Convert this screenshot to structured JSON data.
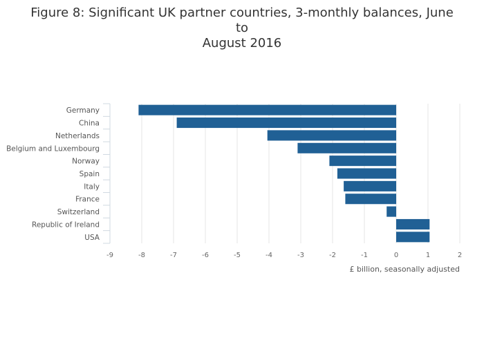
{
  "chart_data": {
    "type": "bar",
    "orientation": "horizontal",
    "title": "Figure 8: Significant UK partner countries, 3-monthly balances, June to August 2016",
    "title_lines": [
      "Figure 8: Significant UK partner countries, 3-monthly balances, June to",
      "August 2016"
    ],
    "xlabel": "£ billion, seasonally adjusted",
    "ylabel": "",
    "xlim": [
      -9,
      2
    ],
    "xticks": [
      -9,
      -8,
      -7,
      -6,
      -5,
      -4,
      -3,
      -2,
      -1,
      0,
      1,
      2
    ],
    "categories": [
      "Germany",
      "China",
      "Netherlands",
      "Belgium and Luxembourg",
      "Norway",
      "Spain",
      "Italy",
      "France",
      "Switzerland",
      "Republic of Ireland",
      "USA"
    ],
    "values": [
      -8.1,
      -6.9,
      -4.05,
      -3.1,
      -2.1,
      -1.85,
      -1.65,
      -1.6,
      -0.3,
      1.05,
      1.05
    ],
    "grid": true,
    "legend": "none",
    "colors": {
      "bar": "#206095",
      "grid": "#e5e5e5",
      "axis": "#cfd8e0",
      "text": "#555555"
    }
  }
}
